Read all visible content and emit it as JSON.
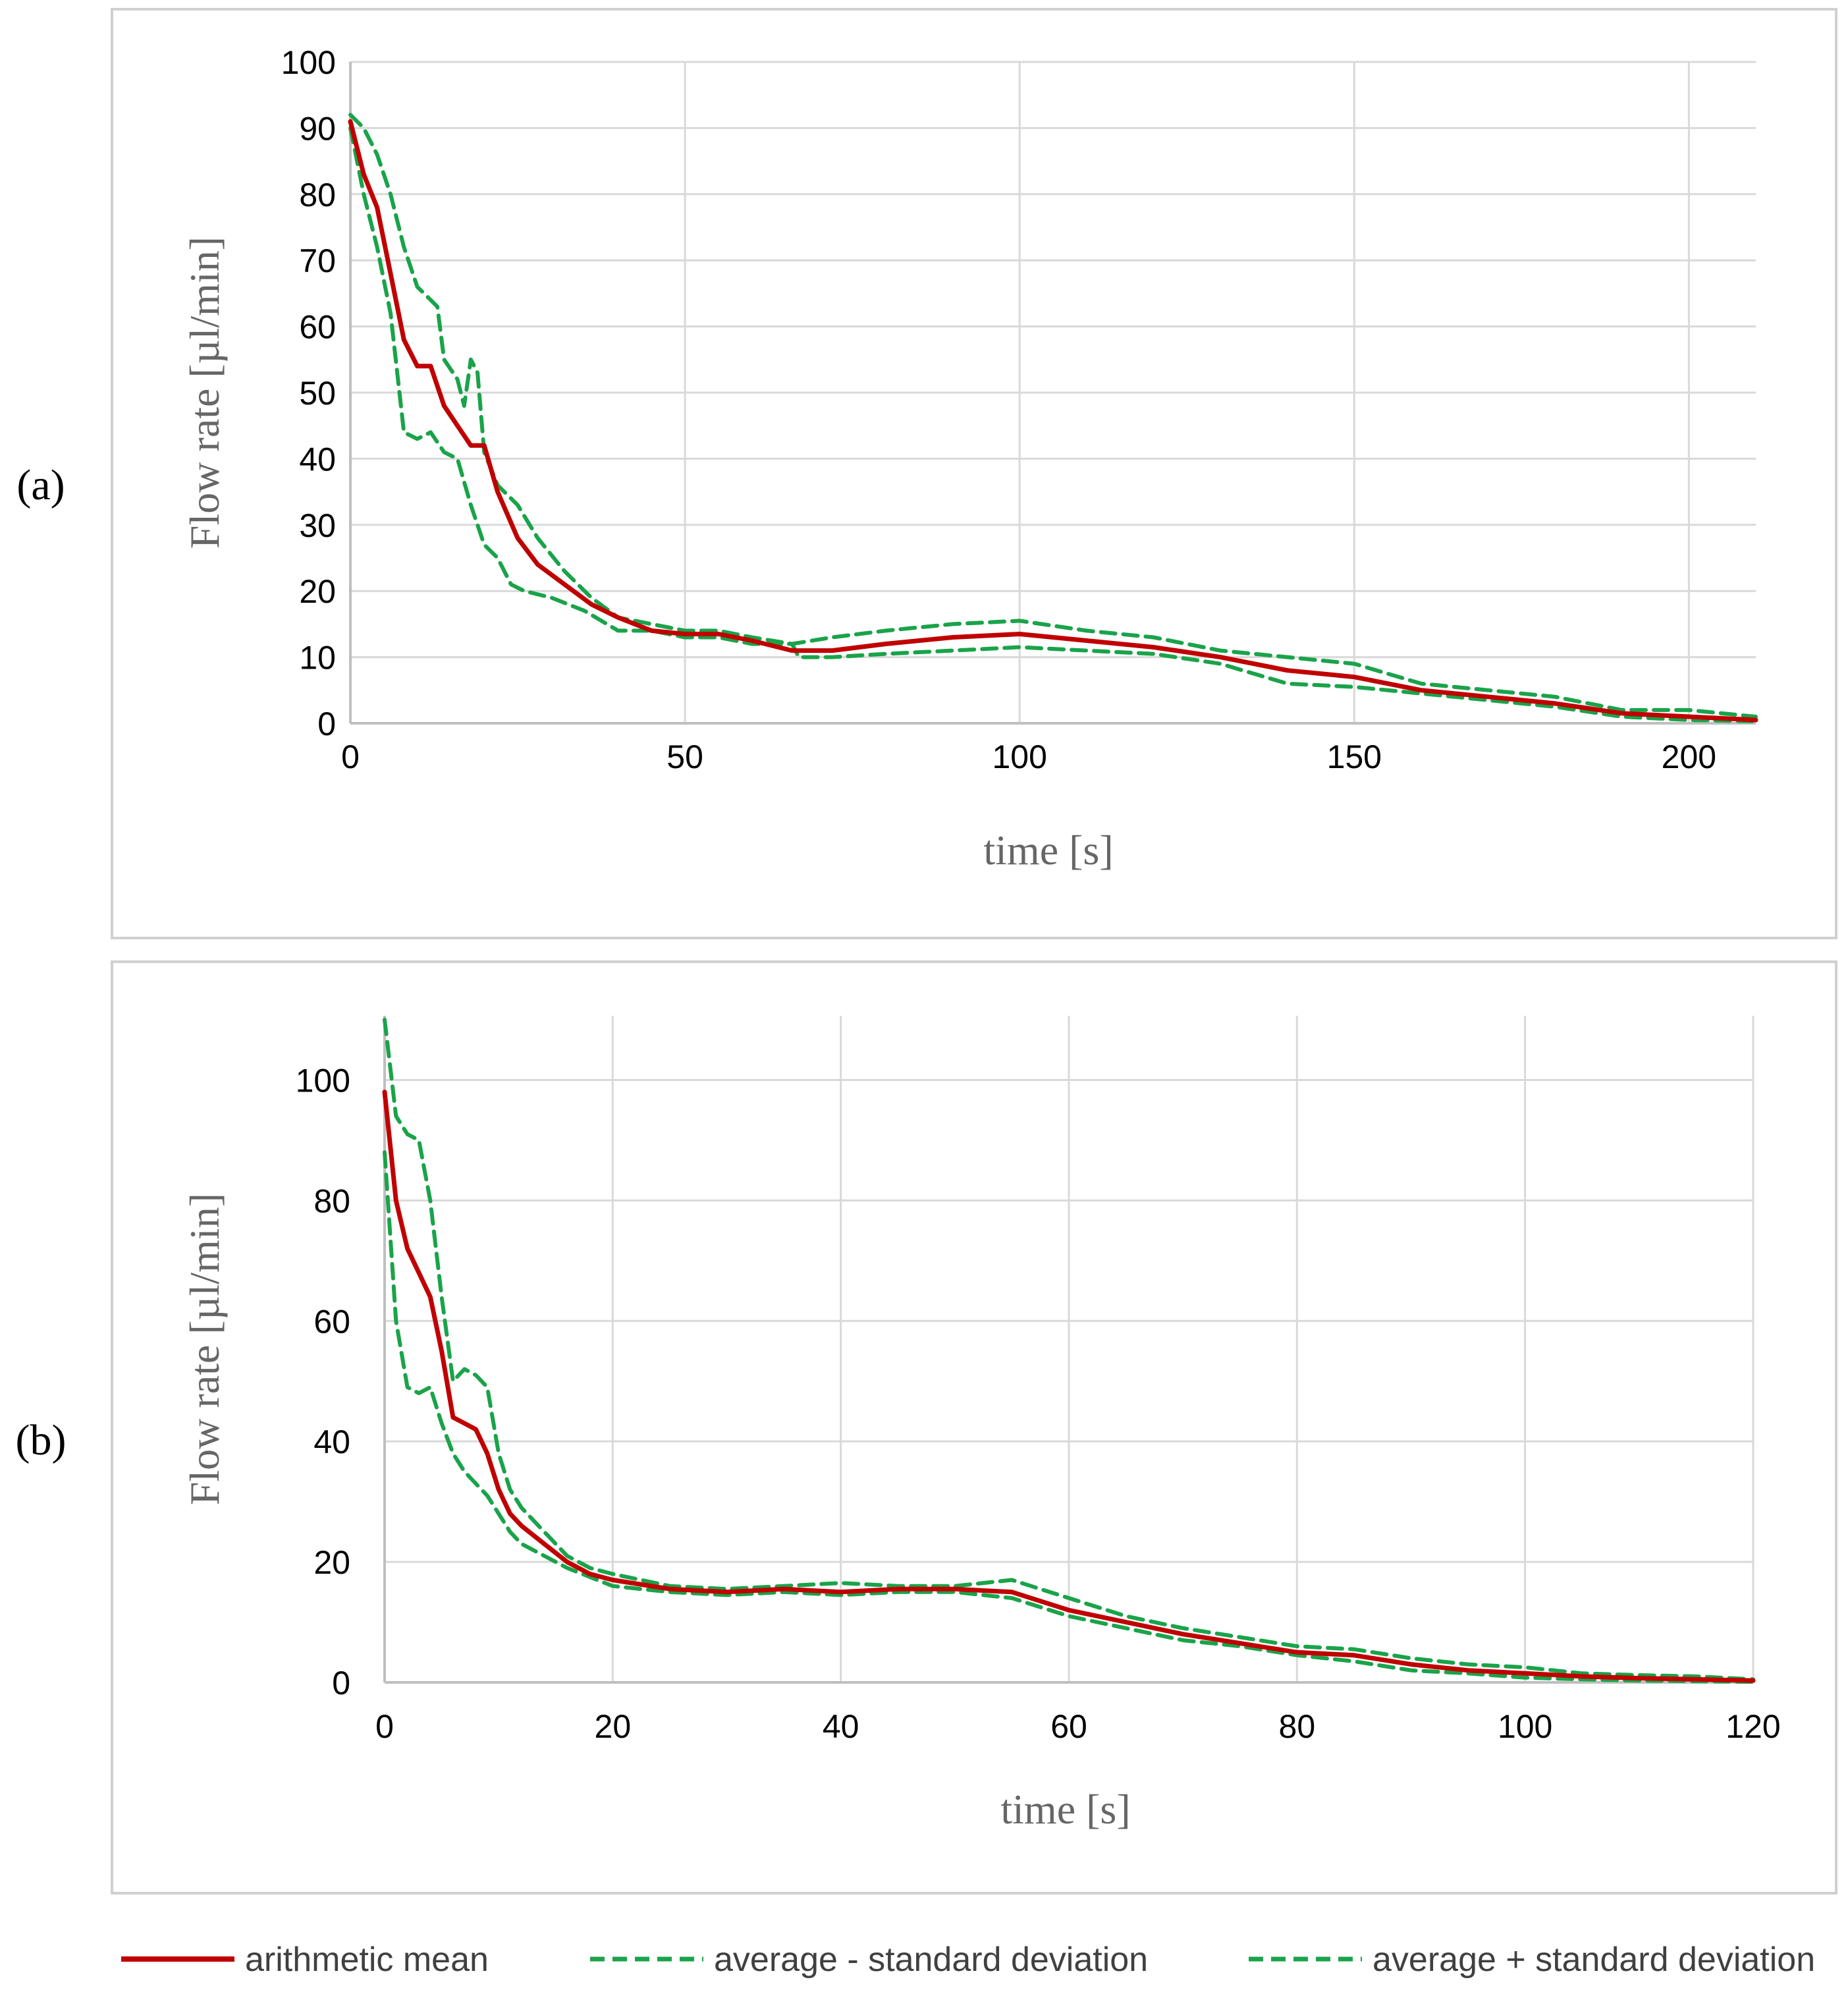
{
  "colors": {
    "mean": "#c00000",
    "sd": "#1aa34a",
    "grid": "#d9d9d9",
    "axis": "#bfbfbf",
    "tick_text": "#000000",
    "axis_label": "#666666",
    "frame": "#d0d0d0"
  },
  "legend": {
    "mean_label": "arithmetic mean",
    "minus_label": "average - standard deviation",
    "plus_label": "average + standard deviation"
  },
  "chart_data": [
    {
      "type": "line",
      "panel_label": "(a)",
      "title": "",
      "xlabel": "time [s]",
      "ylabel": "Flow rate [µl/min]",
      "xlim": [
        0,
        210
      ],
      "ylim": [
        0,
        100
      ],
      "x_ticks": [
        0,
        50,
        100,
        150,
        200
      ],
      "y_ticks": [
        0,
        10,
        20,
        30,
        40,
        50,
        60,
        70,
        80,
        90,
        100
      ],
      "grid": true,
      "series": [
        {
          "name": "arithmetic mean",
          "x": [
            0,
            2,
            4,
            6,
            8,
            10,
            12,
            14,
            16,
            18,
            20,
            22,
            25,
            28,
            32,
            36,
            40,
            45,
            50,
            55,
            60,
            66,
            72,
            80,
            90,
            100,
            110,
            120,
            130,
            140,
            150,
            160,
            170,
            180,
            190,
            200,
            210
          ],
          "y": [
            91,
            83,
            78,
            68,
            58,
            54,
            54,
            48,
            45,
            42,
            42,
            35,
            28,
            24,
            21,
            18,
            16,
            14,
            13.5,
            13.5,
            12.5,
            11,
            11,
            12,
            13,
            13.5,
            12.5,
            11.5,
            10,
            8,
            7,
            5,
            4,
            3,
            1.5,
            1,
            0.5
          ]
        },
        {
          "name": "average - standard deviation",
          "x": [
            0,
            2,
            4,
            6,
            8,
            10,
            12,
            14,
            16,
            18,
            20,
            22,
            24,
            26,
            30,
            35,
            40,
            45,
            50,
            55,
            60,
            66,
            67,
            72,
            80,
            90,
            100,
            110,
            120,
            130,
            140,
            150,
            160,
            170,
            180,
            190,
            200,
            210
          ],
          "y": [
            90,
            80,
            72,
            62,
            44,
            43,
            44,
            41,
            40,
            33,
            27,
            25,
            21,
            20,
            19,
            17,
            14,
            14,
            13,
            13,
            12,
            12,
            10,
            10,
            10.5,
            11,
            11.5,
            11,
            10.5,
            9,
            6,
            5.5,
            4.5,
            3.5,
            2.5,
            1,
            0.5,
            0.3
          ]
        },
        {
          "name": "average + standard deviation",
          "x": [
            0,
            2,
            4,
            6,
            8,
            10,
            12,
            13,
            14,
            16,
            17,
            18,
            19,
            20,
            22,
            25,
            28,
            32,
            36,
            40,
            45,
            50,
            55,
            60,
            66,
            72,
            80,
            90,
            100,
            110,
            120,
            130,
            140,
            150,
            160,
            170,
            180,
            190,
            200,
            210
          ],
          "y": [
            92,
            90,
            86,
            80,
            72,
            66,
            64,
            63,
            55,
            52,
            48,
            55,
            53,
            41,
            36,
            33,
            28,
            23,
            19,
            16,
            15,
            14,
            14,
            13,
            12,
            13,
            14,
            15,
            15.5,
            14,
            13,
            11,
            10,
            9,
            6,
            5,
            4,
            2,
            2,
            1
          ]
        }
      ]
    },
    {
      "type": "line",
      "panel_label": "(b)",
      "title": "",
      "xlabel": "time [s]",
      "ylabel": "Flow rate [µl/min]",
      "xlim": [
        0,
        120
      ],
      "ylim": [
        0,
        110
      ],
      "x_ticks": [
        0,
        20,
        40,
        60,
        80,
        100,
        120
      ],
      "y_ticks": [
        0,
        20,
        40,
        60,
        80,
        100
      ],
      "grid": true,
      "series": [
        {
          "name": "arithmetic mean",
          "x": [
            0,
            1,
            2,
            3,
            4,
            5,
            6,
            7,
            8,
            9,
            10,
            11,
            12,
            14,
            16,
            18,
            20,
            25,
            30,
            35,
            40,
            45,
            50,
            55,
            60,
            65,
            70,
            75,
            80,
            85,
            90,
            95,
            100,
            105,
            110,
            115,
            120
          ],
          "y": [
            98,
            80,
            72,
            68,
            64,
            55,
            44,
            43,
            42,
            38,
            32,
            28,
            26,
            23,
            20,
            18,
            17,
            15.5,
            15,
            15.5,
            15,
            15.5,
            15.5,
            15,
            12,
            10,
            8,
            6.5,
            5,
            4.5,
            3,
            2,
            1.5,
            1,
            0.7,
            0.5,
            0.3
          ]
        },
        {
          "name": "average - standard deviation",
          "x": [
            0,
            1,
            2,
            3,
            4,
            5,
            6,
            7,
            8,
            9,
            10,
            11,
            12,
            14,
            16,
            18,
            20,
            25,
            30,
            35,
            40,
            45,
            50,
            55,
            60,
            65,
            70,
            75,
            80,
            85,
            90,
            95,
            100,
            105,
            110,
            115,
            120
          ],
          "y": [
            88,
            60,
            49,
            48,
            49,
            43,
            38,
            35,
            33,
            31,
            28,
            25,
            23,
            21,
            19,
            17.5,
            16,
            15,
            14.5,
            15,
            14.5,
            15,
            15,
            14,
            11,
            9,
            7,
            6,
            4.5,
            3.5,
            2,
            1.5,
            0.8,
            0.5,
            0.3,
            0.2,
            0.1
          ]
        },
        {
          "name": "average + standard deviation",
          "x": [
            0,
            1,
            2,
            3,
            4,
            5,
            6,
            7,
            8,
            9,
            10,
            11,
            12,
            14,
            16,
            18,
            20,
            25,
            30,
            35,
            40,
            45,
            50,
            55,
            60,
            65,
            70,
            75,
            80,
            85,
            90,
            95,
            100,
            105,
            110,
            115,
            120
          ],
          "y": [
            110,
            94,
            91,
            90,
            80,
            64,
            50,
            52,
            51,
            49,
            38,
            32,
            29,
            25,
            21,
            19,
            18,
            16,
            15.5,
            16,
            16.5,
            16,
            16,
            17,
            14,
            11,
            9,
            7.5,
            6,
            5.5,
            4,
            3,
            2.5,
            1.5,
            1.2,
            1,
            0.5
          ]
        }
      ]
    }
  ]
}
